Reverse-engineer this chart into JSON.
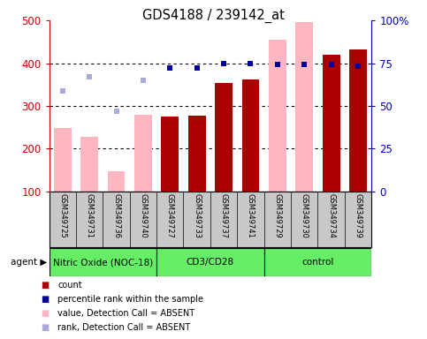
{
  "title": "GDS4188 / 239142_at",
  "samples": [
    "GSM349725",
    "GSM349731",
    "GSM349736",
    "GSM349740",
    "GSM349727",
    "GSM349733",
    "GSM349737",
    "GSM349741",
    "GSM349729",
    "GSM349730",
    "GSM349734",
    "GSM349739"
  ],
  "groups": [
    {
      "label": "Nitric Oxide (NOC-18)",
      "start": 0,
      "end": 3
    },
    {
      "label": "CD3/CD28",
      "start": 4,
      "end": 7
    },
    {
      "label": "control",
      "start": 8,
      "end": 11
    }
  ],
  "count_bars_indices": [
    4,
    5,
    6,
    7,
    10,
    11
  ],
  "count_bars_values": [
    275,
    278,
    353,
    362,
    420,
    433
  ],
  "absent_value_bars_indices": [
    0,
    1,
    2,
    3,
    8,
    9
  ],
  "absent_value_bars_values": [
    248,
    228,
    148,
    280,
    455,
    495
  ],
  "percentile_rank_indices": [
    4,
    5,
    6,
    7,
    8,
    9,
    10,
    11
  ],
  "percentile_rank_values": [
    72,
    72,
    75,
    75,
    74,
    74,
    74,
    73
  ],
  "absent_rank_indices": [
    0,
    1,
    2,
    3
  ],
  "absent_rank_values": [
    59,
    67,
    47,
    65
  ],
  "ylim_left": [
    100,
    500
  ],
  "ylim_right": [
    0,
    100
  ],
  "yticks_left": [
    100,
    200,
    300,
    400,
    500
  ],
  "yticks_right": [
    0,
    25,
    50,
    75,
    100
  ],
  "ytick_labels_right": [
    "0",
    "25",
    "50",
    "75",
    "100%"
  ],
  "color_count": "#AA0000",
  "color_absent_value": "#FFB6C1",
  "color_percentile": "#000099",
  "color_absent_rank": "#AAAADD",
  "color_sample_bg": "#C8C8C8",
  "color_agent_bg": "#66EE66",
  "color_bg": "#FFFFFF",
  "bar_width": 0.65,
  "tick_color_left": "#CC0000",
  "tick_color_right": "#0000BB",
  "n_samples": 12
}
